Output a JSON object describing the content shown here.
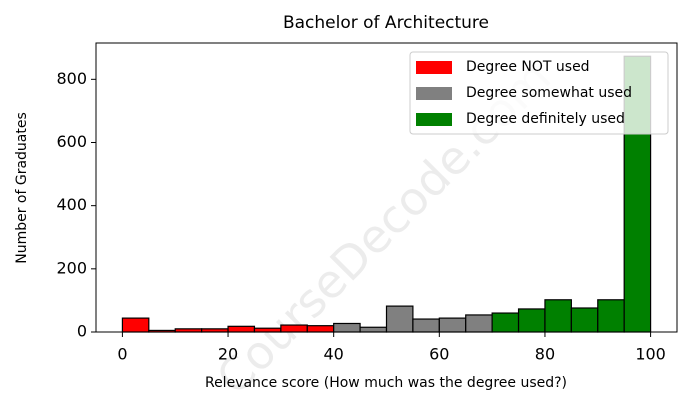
{
  "chart_data": {
    "type": "histogram",
    "title": "Bachelor of Architecture",
    "xlabel": "Relevance score (How much was the degree used?)",
    "ylabel": "Number of Graduates",
    "watermark": "CourseDecode.com",
    "xlim": [
      -5,
      105
    ],
    "xticks": [
      0,
      20,
      40,
      60,
      80,
      100
    ],
    "ylim": [
      0,
      915
    ],
    "yticks": [
      0,
      200,
      400,
      600,
      800
    ],
    "legend": "upper right",
    "series": [
      {
        "name": "Degree NOT used",
        "color": "#ff0000",
        "bins": [
          0,
          5,
          10,
          15,
          20,
          25,
          30,
          35,
          40
        ],
        "values": [
          44,
          5,
          10,
          10,
          18,
          12,
          22,
          20
        ]
      },
      {
        "name": "Degree somewhat used",
        "color": "#808080",
        "bins": [
          40,
          45,
          50,
          55,
          60,
          65,
          70
        ],
        "values": [
          27,
          15,
          82,
          41,
          44,
          54
        ]
      },
      {
        "name": "Degree definitely used",
        "color": "#008000",
        "bins": [
          70,
          75,
          80,
          85,
          90,
          95,
          100
        ],
        "values": [
          60,
          73,
          102,
          76,
          102,
          873
        ]
      }
    ]
  }
}
